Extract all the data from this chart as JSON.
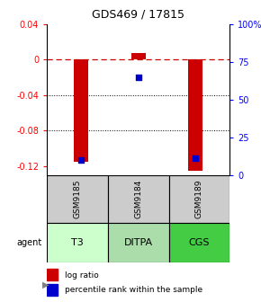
{
  "title": "GDS469 / 17815",
  "samples": [
    "GSM9185",
    "GSM9184",
    "GSM9189"
  ],
  "agents": [
    "T3",
    "DITPA",
    "CGS"
  ],
  "log_ratios": [
    -0.115,
    0.008,
    -0.125
  ],
  "percentile_ranks": [
    10,
    65,
    11
  ],
  "ylim_left": [
    -0.13,
    0.04
  ],
  "ylim_right": [
    0,
    100
  ],
  "left_ticks": [
    0.04,
    0.0,
    -0.04,
    -0.08,
    -0.12
  ],
  "right_ticks": [
    100,
    75,
    50,
    25,
    0
  ],
  "left_tick_labels": [
    "0.04",
    "0",
    "-0.04",
    "-0.08",
    "-0.12"
  ],
  "right_tick_labels": [
    "100%",
    "75",
    "50",
    "25",
    "0"
  ],
  "bar_color": "#cc0000",
  "dot_color": "#0000cc",
  "agent_colors": [
    "#ccffcc",
    "#aaddaa",
    "#44cc44"
  ],
  "sample_bg_color": "#cccccc",
  "legend_labels": [
    "log ratio",
    "percentile rank within the sample"
  ],
  "bar_width": 0.25,
  "dot_size": 20
}
